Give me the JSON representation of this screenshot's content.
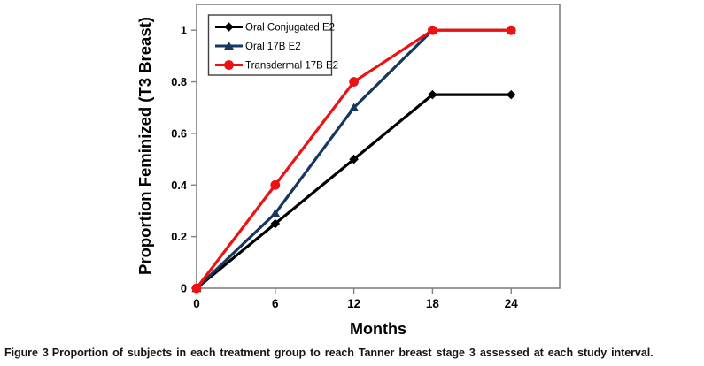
{
  "chart_data": {
    "type": "line",
    "title": "",
    "xlabel": "Months",
    "ylabel": "Proportion Feminized (T3 Breast)",
    "x": [
      0,
      6,
      12,
      18,
      24
    ],
    "xlim": [
      0,
      27.7
    ],
    "ylim": [
      0,
      1.1
    ],
    "yticks": [
      0,
      0.2,
      0.4,
      0.6,
      0.8,
      1
    ],
    "ytick_labels": [
      "0",
      "0.2",
      "0.4",
      "0.6",
      "0.8",
      "1"
    ],
    "xtick_labels": [
      "0",
      "6",
      "12",
      "18",
      "24"
    ],
    "grid": false,
    "legend_position": "top-left-inside",
    "frame_color": "#808080",
    "series": [
      {
        "name": "Oral Conjugated E2",
        "color": "#000000",
        "marker": "diamond",
        "values": [
          0,
          0.25,
          0.5,
          0.75,
          0.75
        ]
      },
      {
        "name": "Oral 17B E2",
        "color": "#17375E",
        "marker": "triangle",
        "values": [
          0,
          0.29,
          0.7,
          1,
          1
        ]
      },
      {
        "name": "Transdermal 17B E2",
        "color": "#EE1111",
        "marker": "circle",
        "values": [
          0,
          0.4,
          0.8,
          1,
          1
        ]
      }
    ]
  },
  "caption": {
    "label": "Figure 3",
    "text": "Proportion of subjects in each treatment group to reach Tanner breast stage 3 assessed at each study interval."
  }
}
